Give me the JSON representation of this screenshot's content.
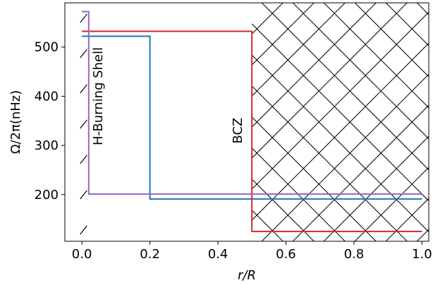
{
  "chart_data": {
    "type": "line",
    "title": "",
    "xlabel": "r/R",
    "ylabel": "Ω/2π(nHz)",
    "xlim": [
      -0.05,
      1.02
    ],
    "ylim": [
      105,
      590
    ],
    "xticks": [
      0.0,
      0.2,
      0.4,
      0.6,
      0.8,
      1.0
    ],
    "xtick_labels": [
      "0.0",
      "0.2",
      "0.4",
      "0.6",
      "0.8",
      "1.0"
    ],
    "yticks": [
      200,
      300,
      400,
      500
    ],
    "ytick_labels": [
      "200",
      "300",
      "400",
      "500"
    ],
    "grid": false,
    "legend": "none",
    "series": [
      {
        "color": "#1f77b4",
        "x": [
          0.0,
          0.2,
          0.2,
          1.0
        ],
        "y": [
          522,
          522,
          191,
          191
        ]
      },
      {
        "color": "#d62728",
        "x": [
          0.0,
          0.5,
          0.5,
          1.0
        ],
        "y": [
          532,
          532,
          125,
          125
        ]
      },
      {
        "color": "#9467bd",
        "x": [
          0.0,
          0.02,
          0.02,
          1.0
        ],
        "y": [
          572,
          572,
          201,
          201
        ]
      }
    ],
    "regions": [
      {
        "label": "BCZ",
        "x_range": [
          0.5,
          1.02
        ],
        "hatch": "crosshatch"
      },
      {
        "label": "H-Burning Shell",
        "x_range": [
          -0.005,
          0.015
        ],
        "hatch": "diagonal"
      }
    ],
    "annotations": [
      {
        "text": "H-Burning Shell",
        "x": 0.06,
        "y": 400,
        "rotation": -90
      },
      {
        "text": "BCZ",
        "x": 0.47,
        "y": 330,
        "rotation": -90
      }
    ]
  }
}
